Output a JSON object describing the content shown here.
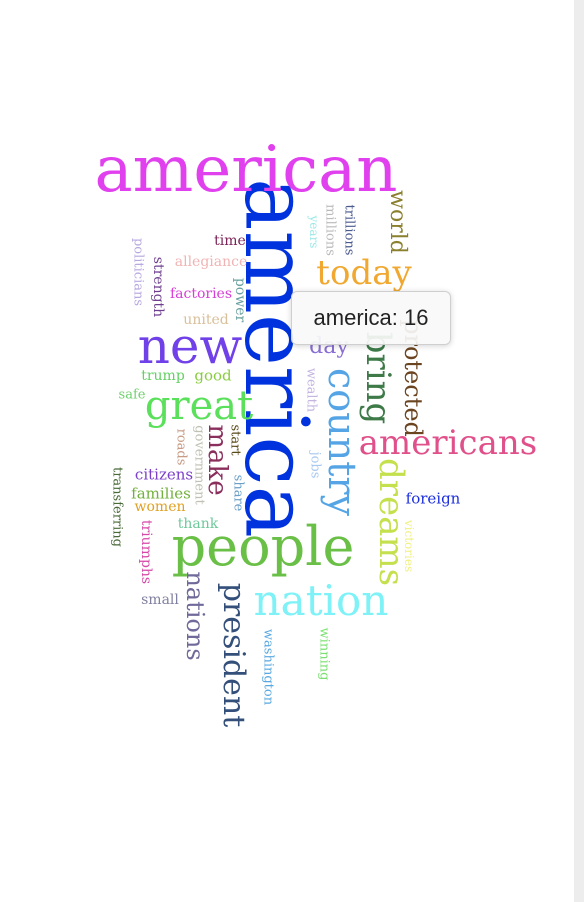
{
  "chart_data": {
    "type": "wordcloud",
    "words": [
      {
        "text": "america",
        "count": 16,
        "color": "#0033dd"
      },
      {
        "text": "american",
        "color": "#e040ee"
      },
      {
        "text": "people",
        "color": "#6abf47"
      },
      {
        "text": "new",
        "color": "#7040e8"
      },
      {
        "text": "nation",
        "color": "#7ef2f7"
      },
      {
        "text": "country",
        "color": "#55a5e6"
      },
      {
        "text": "americans",
        "color": "#e0508a"
      },
      {
        "text": "today",
        "color": "#f0a830"
      },
      {
        "text": "bring",
        "color": "#3d7a48"
      },
      {
        "text": "great",
        "color": "#5ae05a"
      },
      {
        "text": "dreams",
        "color": "#c4e04d"
      },
      {
        "text": "president",
        "color": "#334f7a"
      },
      {
        "text": "nations",
        "color": "#6f6a99"
      },
      {
        "text": "make",
        "color": "#8a2e5c"
      },
      {
        "text": "protected",
        "color": "#6b4420"
      },
      {
        "text": "world",
        "color": "#8a8030"
      },
      {
        "text": "day",
        "color": "#8a6fd4"
      },
      {
        "text": "foreign",
        "color": "#1a2ee0"
      },
      {
        "text": "trillions",
        "color": "#4a5a8f"
      },
      {
        "text": "millions",
        "color": "#bababa"
      },
      {
        "text": "years",
        "color": "#9fe8e8"
      },
      {
        "text": "time",
        "color": "#7a2458"
      },
      {
        "text": "allegiance",
        "color": "#f0b4b4"
      },
      {
        "text": "power",
        "color": "#6aa0a0"
      },
      {
        "text": "factories",
        "color": "#d83ed8"
      },
      {
        "text": "united",
        "color": "#d8c09a"
      },
      {
        "text": "strength",
        "color": "#6f3f8f"
      },
      {
        "text": "politicians",
        "color": "#b8a8e0"
      },
      {
        "text": "trump",
        "color": "#64d064"
      },
      {
        "text": "good",
        "color": "#8acc40"
      },
      {
        "text": "safe",
        "color": "#6ed06e"
      },
      {
        "text": "wealth",
        "color": "#c4b4e0"
      },
      {
        "text": "jobs",
        "color": "#a8c8f0"
      },
      {
        "text": "start",
        "color": "#5a4a1a"
      },
      {
        "text": "share",
        "color": "#6aa0c8"
      },
      {
        "text": "government",
        "color": "#c0c0b4"
      },
      {
        "text": "roads",
        "color": "#c89a84"
      },
      {
        "text": "citizens",
        "color": "#7a3ec8"
      },
      {
        "text": "families",
        "color": "#72b03e"
      },
      {
        "text": "women",
        "color": "#e0a020"
      },
      {
        "text": "thank",
        "color": "#6ec89a"
      },
      {
        "text": "transferring",
        "color": "#4a6a3a"
      },
      {
        "text": "triumphs",
        "color": "#d848a8"
      },
      {
        "text": "small",
        "color": "#8080a0"
      },
      {
        "text": "victories",
        "color": "#f0f080"
      },
      {
        "text": "washington",
        "color": "#5aa8e0"
      },
      {
        "text": "winning",
        "color": "#7ae070"
      }
    ]
  },
  "tooltip": {
    "text": "america: 16"
  }
}
